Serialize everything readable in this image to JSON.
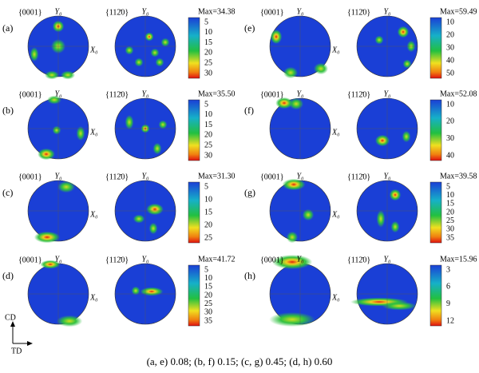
{
  "panels": [
    {
      "label": "(a)",
      "pole1": "{0001}",
      "pole2": "{112̄0}",
      "y_axis": "Y₀",
      "x_axis": "X₀",
      "max": "Max=34.38",
      "ticks": [
        5,
        10,
        15,
        20,
        25,
        30
      ]
    },
    {
      "label": "(b)",
      "pole1": "{0001}",
      "pole2": "{112̄0}",
      "y_axis": "Y₀",
      "x_axis": "X₀",
      "max": "Max=35.50",
      "ticks": [
        5,
        10,
        15,
        20,
        25,
        30
      ]
    },
    {
      "label": "(c)",
      "pole1": "{0001}",
      "pole2": "{112̄0}",
      "y_axis": "Y₀",
      "x_axis": "X₀",
      "max": "Max=31.30",
      "ticks": [
        5,
        10,
        15,
        20,
        25
      ]
    },
    {
      "label": "(d)",
      "pole1": "{0001}",
      "pole2": "{112̄0}",
      "y_axis": "Y₀",
      "x_axis": "X₀",
      "max": "Max=41.72",
      "ticks": [
        5,
        10,
        15,
        20,
        25,
        30,
        35
      ]
    },
    {
      "label": "(e)",
      "pole1": "{0001}",
      "pole2": "{112̄0}",
      "y_axis": "Y₀",
      "x_axis": "X₀",
      "max": "Max=59.49",
      "ticks": [
        10,
        20,
        30,
        40,
        50
      ]
    },
    {
      "label": "(f)",
      "pole1": "{0001}",
      "pole2": "{112̄0}",
      "y_axis": "Y₀",
      "x_axis": "X₀",
      "max": "Max=52.08",
      "ticks": [
        10,
        20,
        30,
        40
      ]
    },
    {
      "label": "(g)",
      "pole1": "{0001}",
      "pole2": "{112̄0}",
      "y_axis": "Y₀",
      "x_axis": "X₀",
      "max": "Max=39.58",
      "ticks": [
        5,
        10,
        15,
        20,
        25,
        30,
        35
      ]
    },
    {
      "label": "(h)",
      "pole1": "{0001}",
      "pole2": "{112̄0}",
      "y_axis": "Y₀",
      "x_axis": "X₀",
      "max": "Max=15.96",
      "ticks": [
        3,
        6,
        9,
        12
      ]
    }
  ],
  "axes": {
    "cd": "CD",
    "td": "TD"
  },
  "caption": "(a, e) 0.08; (b, f) 0.15; (c, g) 0.45; (d, h) 0.60"
}
